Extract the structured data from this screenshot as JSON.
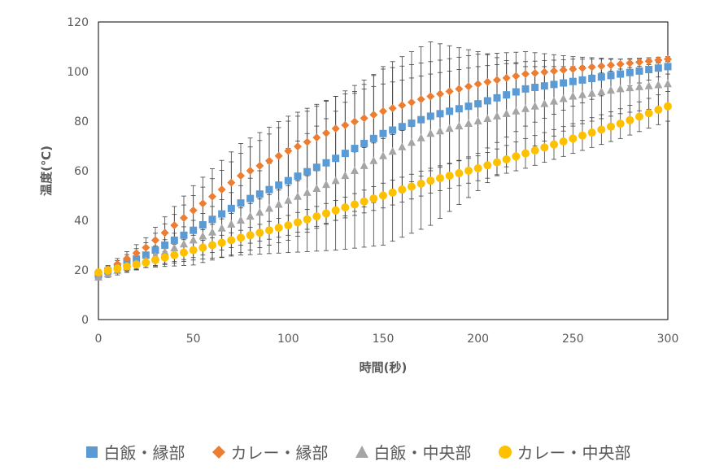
{
  "chart_data": {
    "type": "scatter",
    "title": "",
    "xlabel": "時間(秒)",
    "ylabel": "温度(℃)",
    "xlim": [
      0,
      300
    ],
    "ylim": [
      0,
      120
    ],
    "xticks": [
      "0",
      "50",
      "100",
      "150",
      "200",
      "250",
      "300"
    ],
    "yticks": [
      "0",
      "20",
      "40",
      "60",
      "80",
      "100",
      "120"
    ],
    "grid": false,
    "legend_position": "bottom",
    "series": [
      {
        "name": "白飯・縁部",
        "marker": "square",
        "color": "#5B9BD5",
        "x": [
          0,
          25,
          50,
          75,
          100,
          125,
          150,
          175,
          200,
          225,
          250,
          275,
          300
        ],
        "y": [
          18,
          26,
          36,
          47,
          56,
          65,
          75,
          82,
          87,
          93,
          96,
          99,
          102
        ],
        "err": [
          1,
          5,
          14,
          20,
          24,
          25,
          26,
          22,
          20,
          15,
          10,
          6,
          3
        ]
      },
      {
        "name": "カレー・縁部",
        "marker": "diamond",
        "color": "#ED7D31",
        "x": [
          0,
          25,
          50,
          75,
          100,
          125,
          150,
          175,
          200,
          225,
          250,
          275,
          300
        ],
        "y": [
          18,
          29,
          44,
          58,
          68,
          77,
          84,
          90,
          95,
          99,
          101,
          103,
          105
        ],
        "err": [
          1,
          4,
          10,
          13,
          14,
          13,
          11,
          9,
          7,
          5,
          4,
          2,
          1
        ]
      },
      {
        "name": "白飯・中央部",
        "marker": "triangle",
        "color": "#A5A5A5",
        "x": [
          0,
          25,
          50,
          75,
          100,
          125,
          150,
          175,
          200,
          225,
          250,
          275,
          300
        ],
        "y": [
          17,
          24,
          32,
          40,
          48,
          56,
          66,
          75,
          80,
          85,
          90,
          93,
          95
        ],
        "err": [
          1,
          3,
          8,
          14,
          21,
          28,
          36,
          37,
          28,
          17,
          12,
          10,
          9
        ]
      },
      {
        "name": "カレー・中央部",
        "marker": "circle",
        "color": "#FFC000",
        "x": [
          0,
          25,
          50,
          75,
          100,
          125,
          150,
          175,
          200,
          225,
          250,
          275,
          300
        ],
        "y": [
          19,
          23,
          28,
          33,
          38,
          44,
          50,
          56,
          61,
          67,
          73,
          79,
          86
        ],
        "err": [
          1,
          2,
          3,
          3,
          4,
          4,
          5,
          5,
          5,
          6,
          6,
          6,
          6
        ]
      }
    ]
  }
}
